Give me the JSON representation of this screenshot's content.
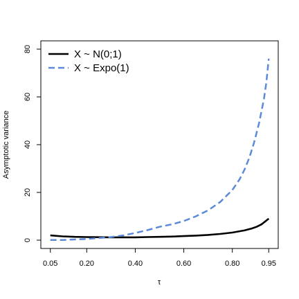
{
  "chart_data": {
    "type": "line",
    "title": "",
    "xlabel": "τ",
    "ylabel": "Asymptotic variance",
    "xlim": [
      0.05,
      0.95
    ],
    "ylim": [
      0,
      80
    ],
    "xticks": [
      0.05,
      0.2,
      0.4,
      0.6,
      0.8,
      0.95
    ],
    "xtick_labels": [
      "0.05",
      "0.20",
      "0.40",
      "0.60",
      "0.80",
      "0.95"
    ],
    "yticks": [
      0,
      20,
      40,
      60,
      80
    ],
    "ytick_labels": [
      "0",
      "20",
      "40",
      "60",
      "80"
    ],
    "grid": false,
    "legend_position": "top-left",
    "series": [
      {
        "name": "X ~ N(0;1)",
        "color": "#000000",
        "style": "solid",
        "x": [
          0.05,
          0.1,
          0.15,
          0.2,
          0.25,
          0.3,
          0.35,
          0.4,
          0.45,
          0.5,
          0.55,
          0.6,
          0.65,
          0.7,
          0.75,
          0.8,
          0.85,
          0.88,
          0.9,
          0.92,
          0.95
        ],
        "y": [
          2.0,
          1.6,
          1.4,
          1.3,
          1.25,
          1.2,
          1.2,
          1.2,
          1.3,
          1.4,
          1.5,
          1.7,
          1.9,
          2.2,
          2.6,
          3.2,
          4.1,
          4.9,
          5.6,
          6.6,
          9.0
        ]
      },
      {
        "name": "X ~ Expo(1)",
        "color": "#5b8ad8",
        "style": "dashed",
        "x": [
          0.05,
          0.1,
          0.15,
          0.2,
          0.25,
          0.3,
          0.35,
          0.4,
          0.45,
          0.5,
          0.55,
          0.6,
          0.65,
          0.7,
          0.75,
          0.8,
          0.83,
          0.85,
          0.87,
          0.89,
          0.91,
          0.93,
          0.94,
          0.95
        ],
        "y": [
          0.05,
          0.1,
          0.3,
          0.5,
          0.9,
          1.3,
          2.0,
          3.0,
          4.2,
          5.6,
          6.6,
          8.0,
          10.0,
          12.5,
          16.0,
          21.0,
          25.5,
          29.5,
          34.5,
          41.0,
          49.0,
          59.0,
          66.0,
          76.0
        ]
      }
    ]
  }
}
